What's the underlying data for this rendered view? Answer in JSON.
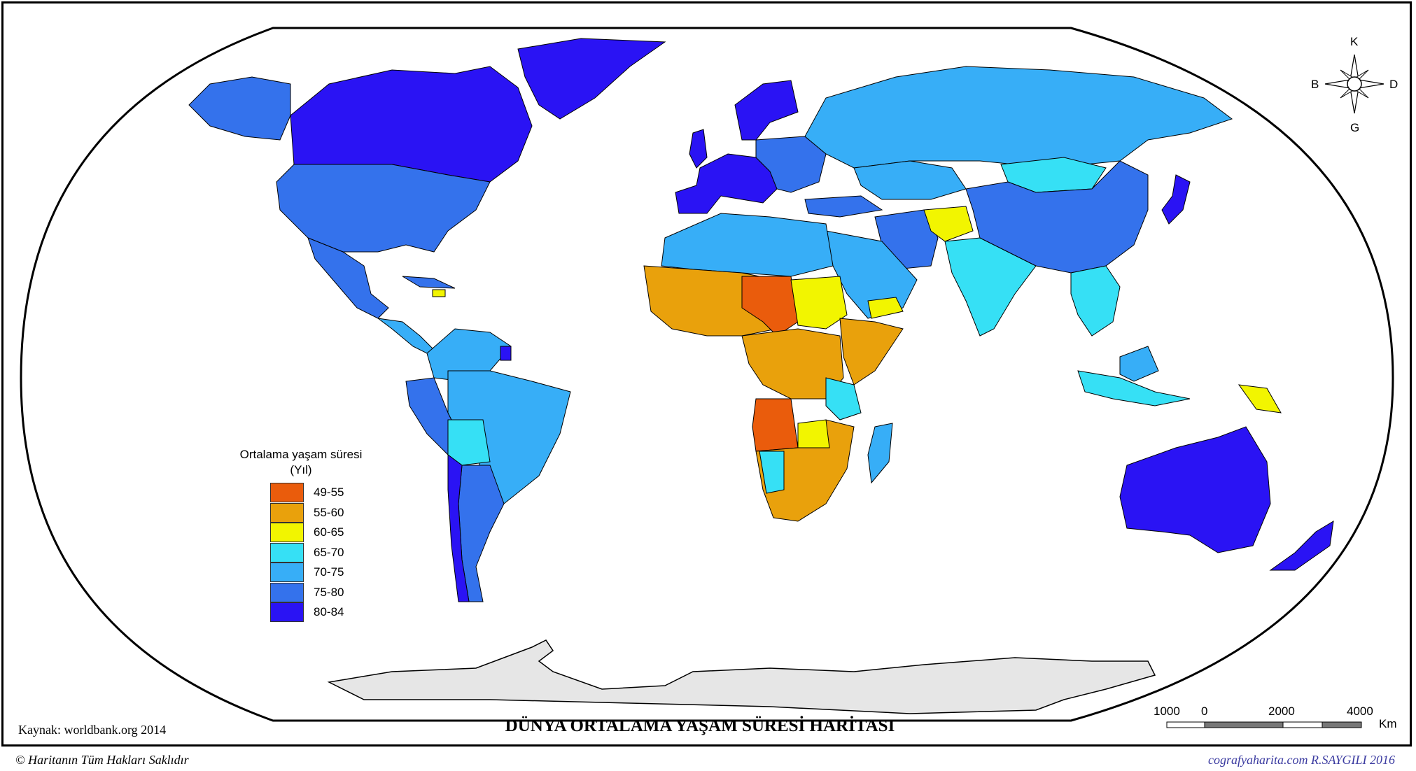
{
  "map": {
    "title": "DÜNYA ORTALAMA YAŞAM SÜRESİ HARİTASI",
    "source": "Kaynak: worldbank.org 2014",
    "copyright": "© Haritanın Tüm Hakları Saklıdır",
    "credit": "cografyaharita.com R.SAYGILI 2016"
  },
  "legend": {
    "title": "Ortalama yaşam süresi",
    "unit": "(Yıl)",
    "classes": [
      {
        "label": "49-55",
        "color": "#ea5c0c"
      },
      {
        "label": "55-60",
        "color": "#e9a10c"
      },
      {
        "label": "60-65",
        "color": "#f2f500"
      },
      {
        "label": "65-70",
        "color": "#36e0f5"
      },
      {
        "label": "70-75",
        "color": "#37aef7"
      },
      {
        "label": "75-80",
        "color": "#3472ec"
      },
      {
        "label": "80-84",
        "color": "#2a13f4"
      }
    ]
  },
  "compass": {
    "north": "K",
    "south": "G",
    "west": "B",
    "east": "D"
  },
  "scale": {
    "labels": [
      "1000",
      "0",
      "2000",
      "4000"
    ],
    "unit": "Km"
  },
  "colors": {
    "ocean": "#ffffff",
    "antarctica": "#e6e6e6",
    "outline": "#000000"
  }
}
